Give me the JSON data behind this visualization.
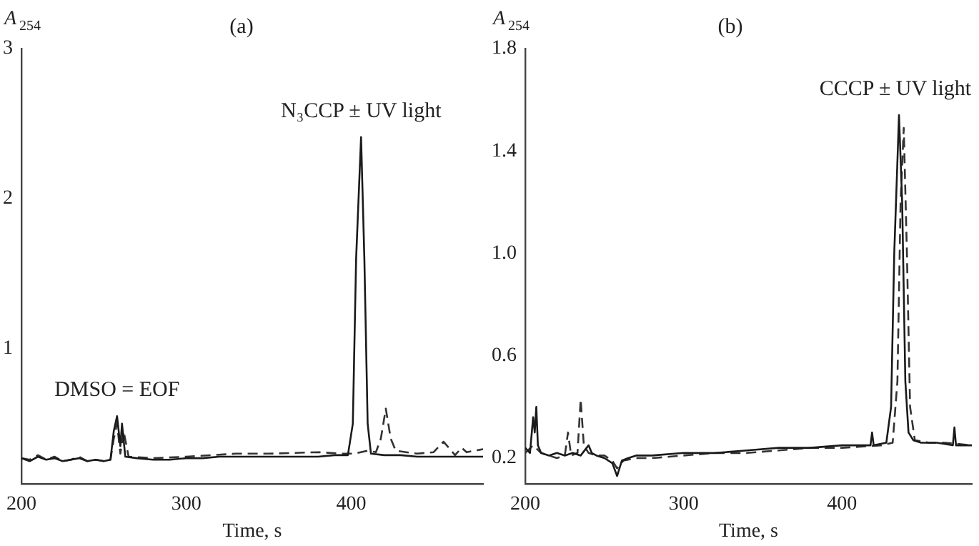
{
  "chart_data": [
    {
      "type": "line",
      "title": "(a)",
      "xlabel": "Time, s",
      "ylabel": "A$_{254}$",
      "xlim": [
        200,
        480
      ],
      "xticks": [
        200,
        300,
        400
      ],
      "ylim": [
        0.1,
        3
      ],
      "yticks": [
        1,
        2,
        3
      ],
      "grid": false,
      "legend": false,
      "marker": "none",
      "annotations": [
        {
          "text": "DMSO = EOF",
          "x": 258,
          "y": 0.55
        },
        {
          "text": "N₃CCP ± UV light",
          "x": 406,
          "y": 2.41
        }
      ],
      "series": [
        {
          "color": "#1a1a1a",
          "line_style": "solid",
          "x": [
            200,
            205,
            210,
            215,
            220,
            225,
            230,
            235,
            240,
            245,
            250,
            254,
            256,
            258,
            260,
            261,
            263,
            270,
            280,
            290,
            300,
            310,
            320,
            330,
            340,
            350,
            360,
            370,
            380,
            390,
            398,
            401,
            403,
            406,
            408,
            410,
            412,
            420,
            430,
            440,
            450,
            460,
            470,
            480
          ],
          "values": [
            0.27,
            0.25,
            0.28,
            0.26,
            0.27,
            0.25,
            0.26,
            0.27,
            0.25,
            0.26,
            0.25,
            0.26,
            0.45,
            0.55,
            0.35,
            0.5,
            0.28,
            0.27,
            0.26,
            0.26,
            0.27,
            0.27,
            0.28,
            0.28,
            0.28,
            0.28,
            0.28,
            0.28,
            0.28,
            0.29,
            0.29,
            0.5,
            1.6,
            2.41,
            1.6,
            0.5,
            0.3,
            0.29,
            0.29,
            0.28,
            0.28,
            0.28,
            0.28,
            0.28
          ]
        },
        {
          "color": "#333333",
          "line_style": "dashed",
          "x": [
            200,
            205,
            210,
            215,
            220,
            225,
            230,
            235,
            240,
            245,
            250,
            254,
            256,
            258,
            260,
            262,
            265,
            280,
            300,
            330,
            350,
            380,
            395,
            402,
            410,
            415,
            418,
            421,
            424,
            427,
            440,
            450,
            456,
            460,
            463,
            467,
            470,
            480
          ],
          "values": [
            0.27,
            0.26,
            0.29,
            0.26,
            0.28,
            0.25,
            0.26,
            0.28,
            0.25,
            0.26,
            0.25,
            0.26,
            0.4,
            0.5,
            0.3,
            0.45,
            0.28,
            0.27,
            0.28,
            0.3,
            0.3,
            0.31,
            0.3,
            0.3,
            0.32,
            0.31,
            0.4,
            0.6,
            0.4,
            0.32,
            0.3,
            0.31,
            0.38,
            0.33,
            0.29,
            0.34,
            0.31,
            0.33
          ]
        }
      ]
    },
    {
      "type": "line",
      "title": "(b)",
      "xlabel": "Time, s",
      "ylabel": "A$_{254}$",
      "xlim": [
        200,
        482
      ],
      "xticks": [
        200,
        300,
        400
      ],
      "ylim": [
        0.1,
        1.8
      ],
      "yticks": [
        0.2,
        0.6,
        {
          "value": 1,
          "label": "1.0"
        },
        1.4,
        1.8
      ],
      "grid": false,
      "legend": false,
      "marker": "none",
      "annotations": [
        {
          "text": "CCCP ± UV light",
          "x": 436,
          "y": 1.54
        }
      ],
      "series": [
        {
          "color": "#1a1a1a",
          "line_style": "solid",
          "x": [
            200,
            203,
            205,
            206,
            207,
            208,
            210,
            215,
            220,
            225,
            230,
            235,
            240,
            242,
            245,
            250,
            255,
            258,
            261,
            265,
            270,
            280,
            300,
            320,
            340,
            360,
            380,
            400,
            418,
            419,
            420,
            428,
            431,
            433,
            436,
            438,
            440,
            442,
            445,
            450,
            460,
            470,
            471,
            472,
            482
          ],
          "values": [
            0.24,
            0.22,
            0.36,
            0.3,
            0.4,
            0.25,
            0.22,
            0.21,
            0.22,
            0.21,
            0.22,
            0.21,
            0.25,
            0.22,
            0.21,
            0.2,
            0.18,
            0.13,
            0.19,
            0.2,
            0.21,
            0.21,
            0.22,
            0.22,
            0.23,
            0.24,
            0.24,
            0.25,
            0.25,
            0.3,
            0.25,
            0.26,
            0.4,
            1.0,
            1.54,
            1.2,
            0.5,
            0.3,
            0.27,
            0.26,
            0.26,
            0.25,
            0.32,
            0.25,
            0.25
          ]
        },
        {
          "color": "#333333",
          "line_style": "dashed",
          "x": [
            200,
            205,
            210,
            215,
            220,
            225,
            227,
            229,
            233,
            235,
            237,
            240,
            245,
            250,
            255,
            258,
            262,
            270,
            280,
            300,
            320,
            340,
            360,
            380,
            400,
            425,
            432,
            435,
            437,
            439,
            441,
            443,
            446,
            455,
            465,
            482
          ],
          "values": [
            0.22,
            0.25,
            0.22,
            0.21,
            0.2,
            0.21,
            0.3,
            0.21,
            0.22,
            0.43,
            0.25,
            0.22,
            0.21,
            0.21,
            0.19,
            0.16,
            0.19,
            0.2,
            0.2,
            0.21,
            0.22,
            0.22,
            0.23,
            0.24,
            0.24,
            0.25,
            0.26,
            0.5,
            1.2,
            1.49,
            1.0,
            0.4,
            0.27,
            0.26,
            0.26,
            0.25
          ]
        }
      ]
    }
  ]
}
